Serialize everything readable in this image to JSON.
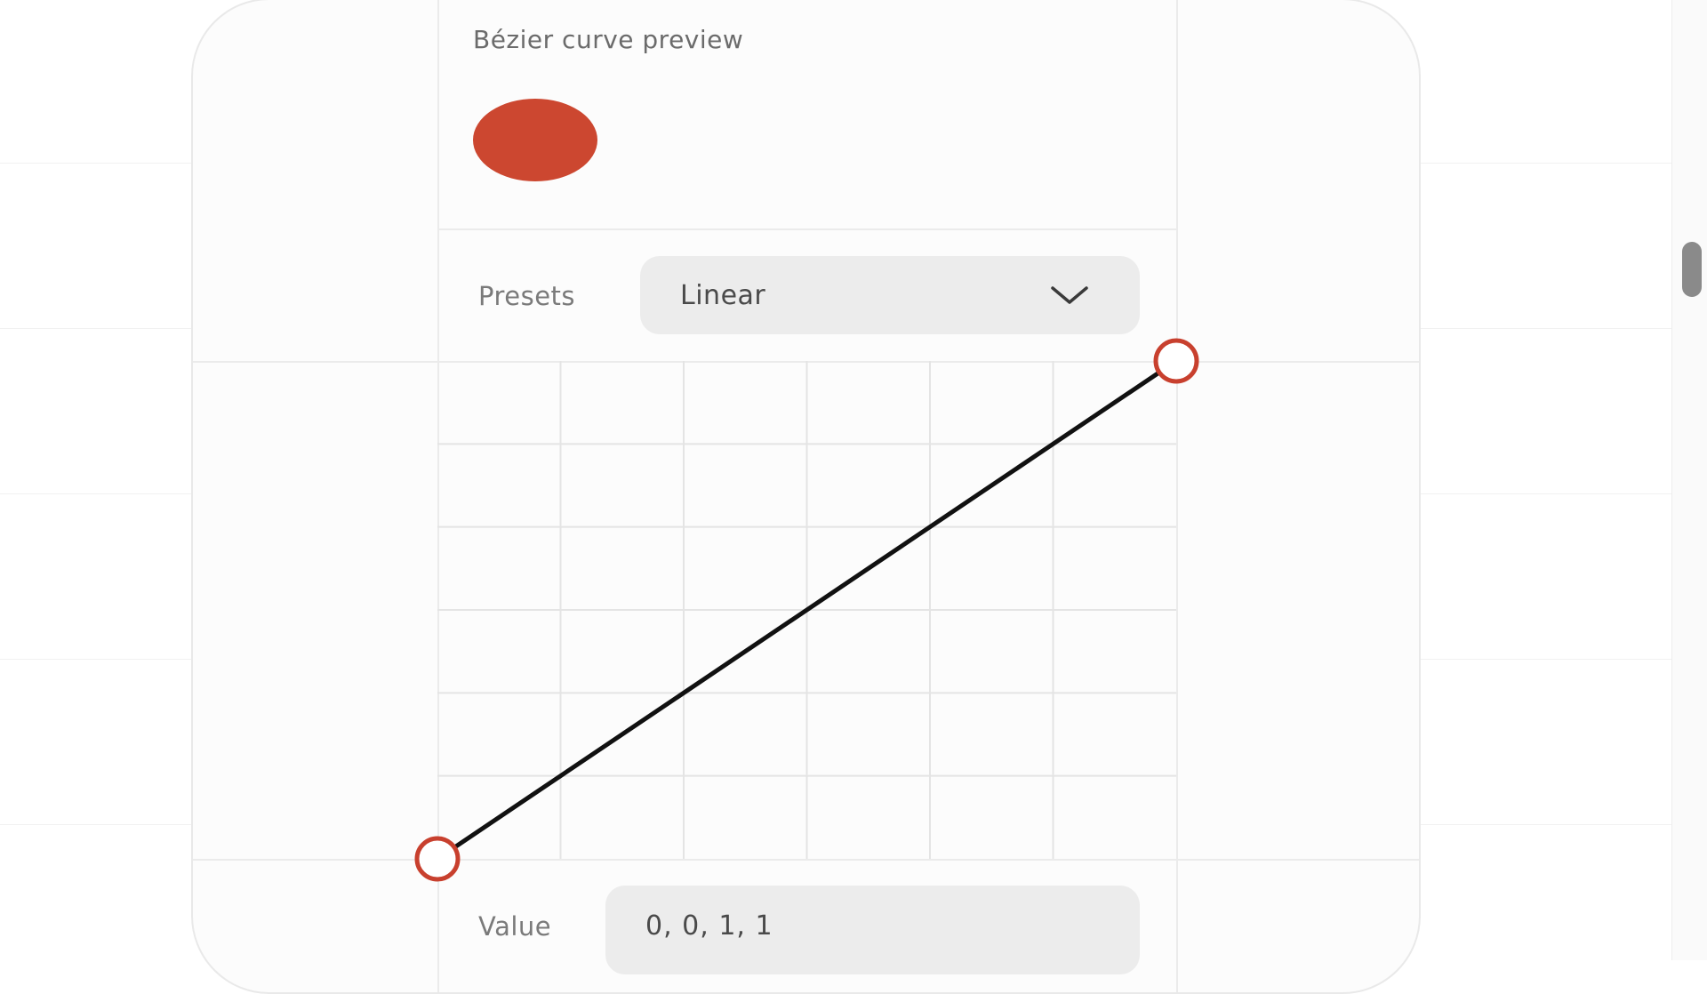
{
  "preview": {
    "title": "Bézier curve preview",
    "ball_color": "#cc4730",
    "ball_icon": "animated-ball"
  },
  "presets": {
    "label": "Presets",
    "selected": "Linear",
    "dropdown_icon": "chevron-down-icon"
  },
  "value_field": {
    "label": "Value",
    "value": "0, 0, 1, 1"
  },
  "curve": {
    "control_points": [
      0,
      0,
      1,
      1
    ],
    "curve_color": "#111111",
    "handle_color": "#c8402e",
    "grid_color": "#e4e4e4"
  },
  "colors": {
    "card_border": "#e9e9e9",
    "field_background": "#ececec",
    "label_text": "#7a7a7a"
  }
}
